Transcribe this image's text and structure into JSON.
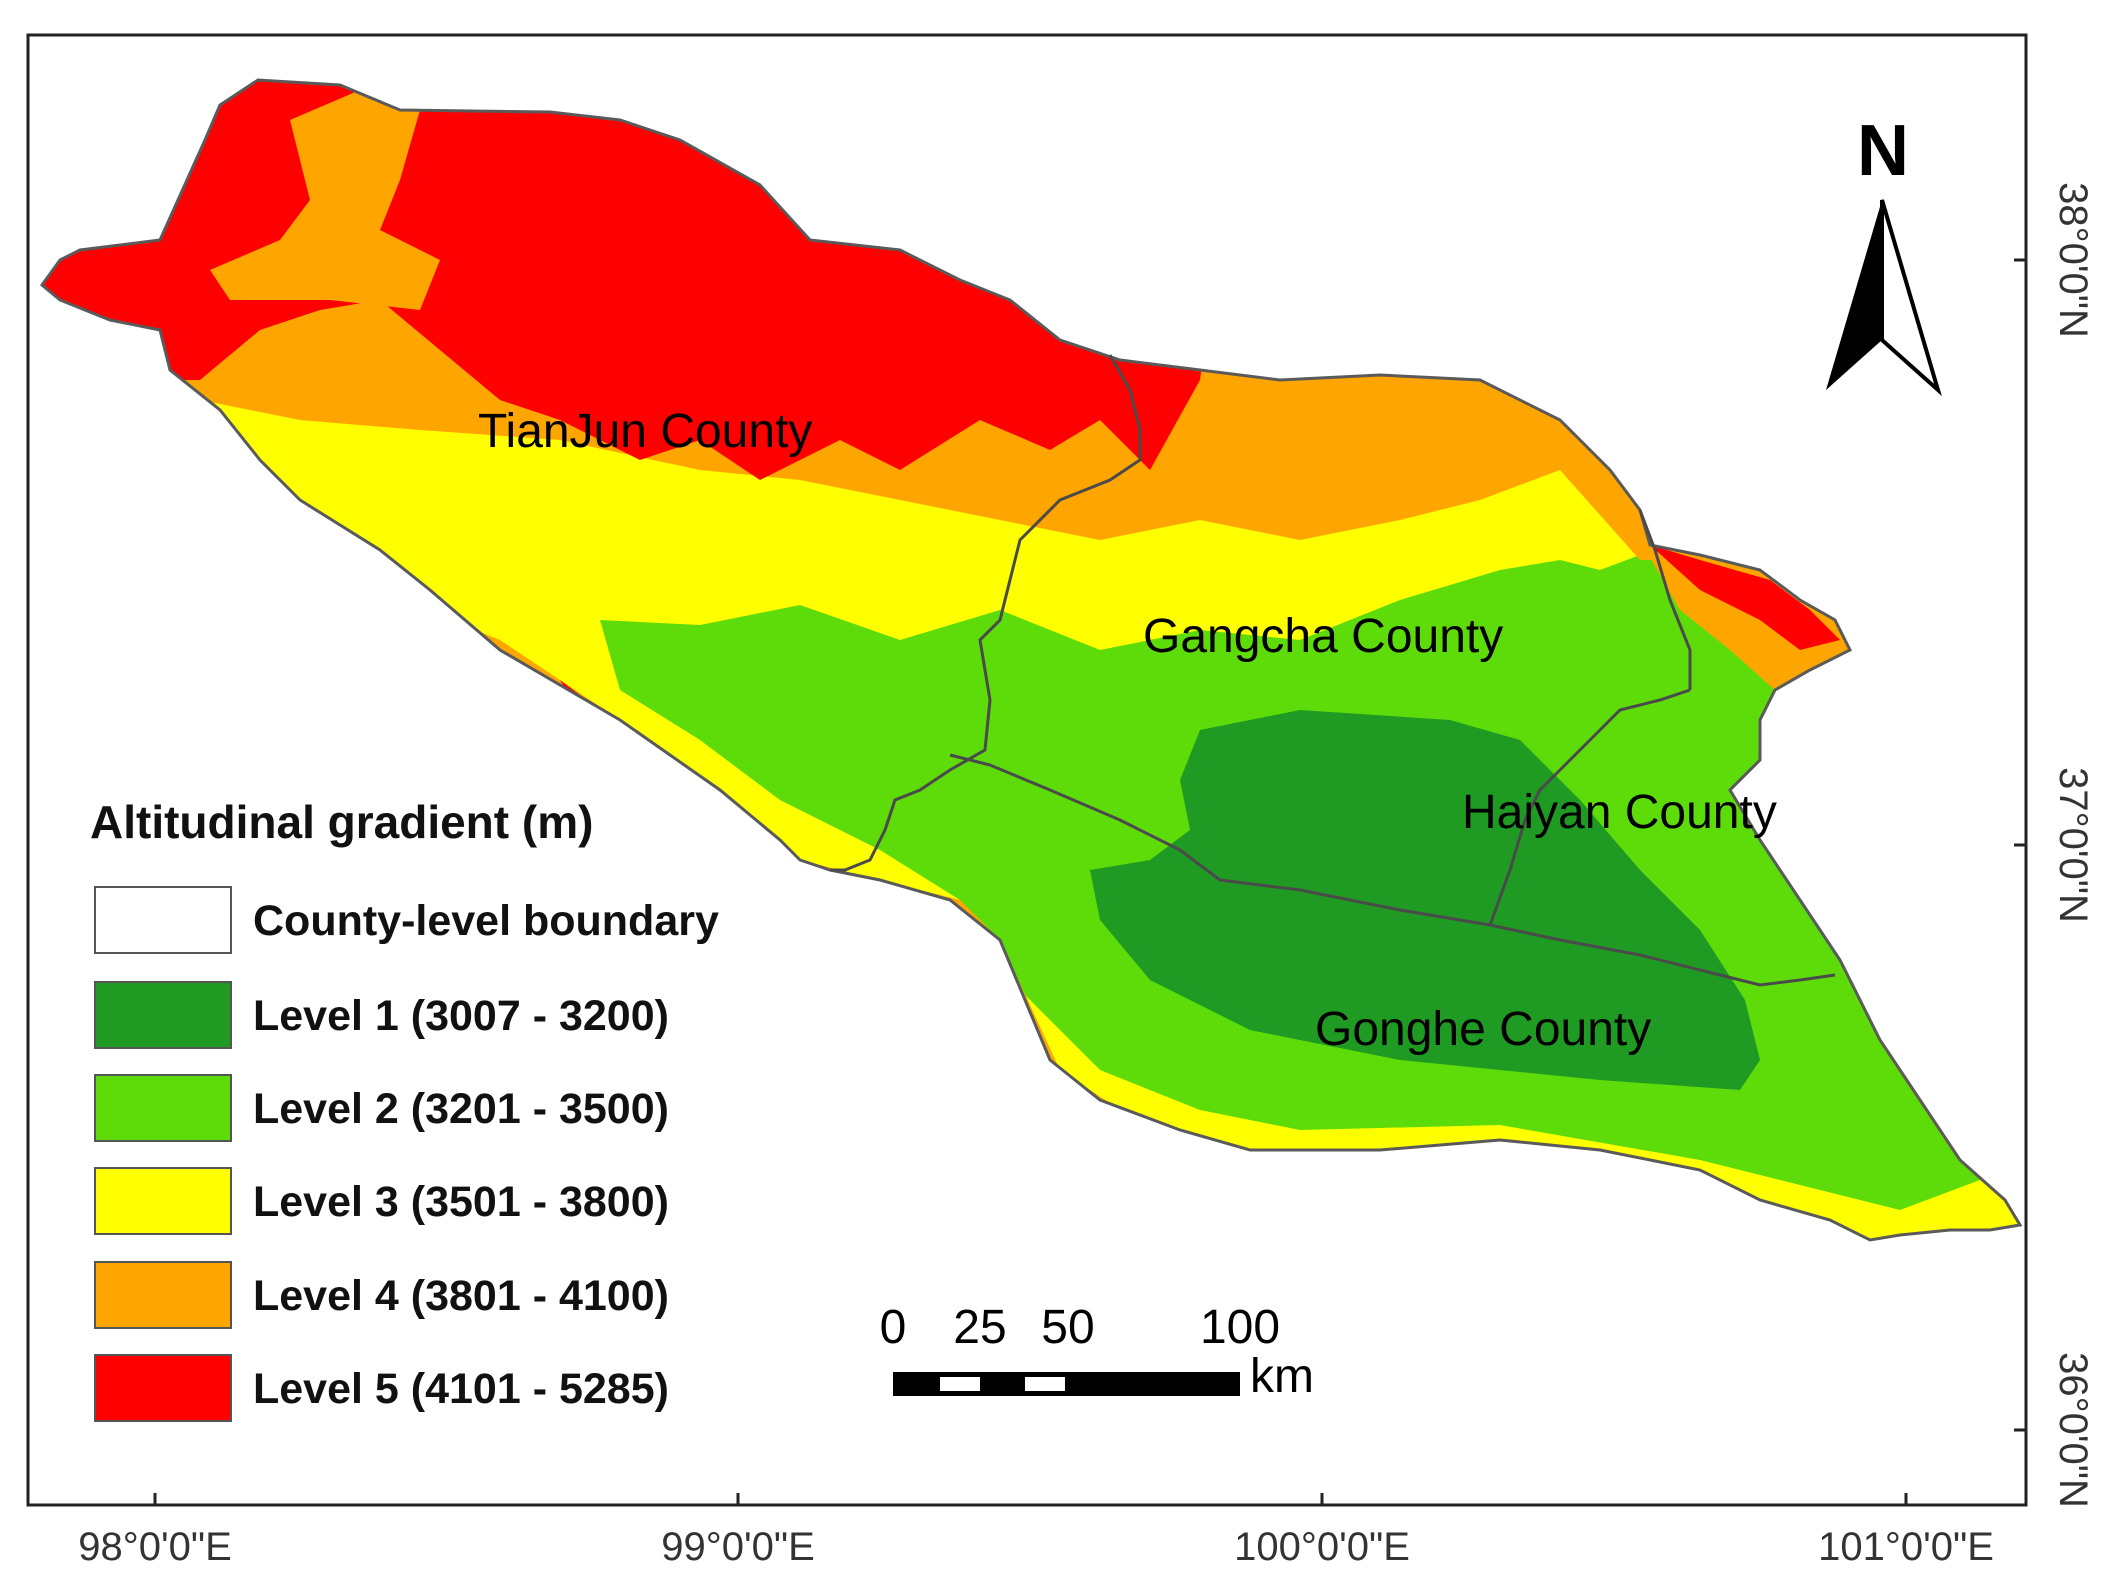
{
  "colors": {
    "level1": "#1f9a22",
    "level2": "#5edc0a",
    "level3": "#ffff00",
    "level4": "#ffa500",
    "level5": "#ff0000",
    "boundary": "#4a4a4a"
  },
  "north_arrow": {
    "label": "N"
  },
  "axes": {
    "longitude_ticks": [
      "98°0'0\"E",
      "99°0'0\"E",
      "100°0'0\"E",
      "101°0'0\"E"
    ],
    "latitude_ticks": [
      "38°0'0\"N",
      "37°0'0\"N",
      "36°0'0\"N"
    ]
  },
  "counties": [
    "TianJun County",
    "Gangcha County",
    "Haiyan County",
    "Gonghe County"
  ],
  "legend": {
    "title": "Altitudinal gradient (m)",
    "items": [
      {
        "label": "County-level boundary",
        "color": "#ffffff"
      },
      {
        "label": "Level 1 (3007 - 3200)",
        "color": "#1f9a22"
      },
      {
        "label": "Level 2 (3201 - 3500)",
        "color": "#5edc0a"
      },
      {
        "label": "Level 3 (3501 - 3800)",
        "color": "#ffff00"
      },
      {
        "label": "Level 4 (3801 - 4100)",
        "color": "#ffa500"
      },
      {
        "label": "Level 5 (4101 - 5285)",
        "color": "#ff0000"
      }
    ]
  },
  "scale_bar": {
    "labels": [
      "0",
      "25",
      "50",
      "100"
    ],
    "unit": "km"
  }
}
